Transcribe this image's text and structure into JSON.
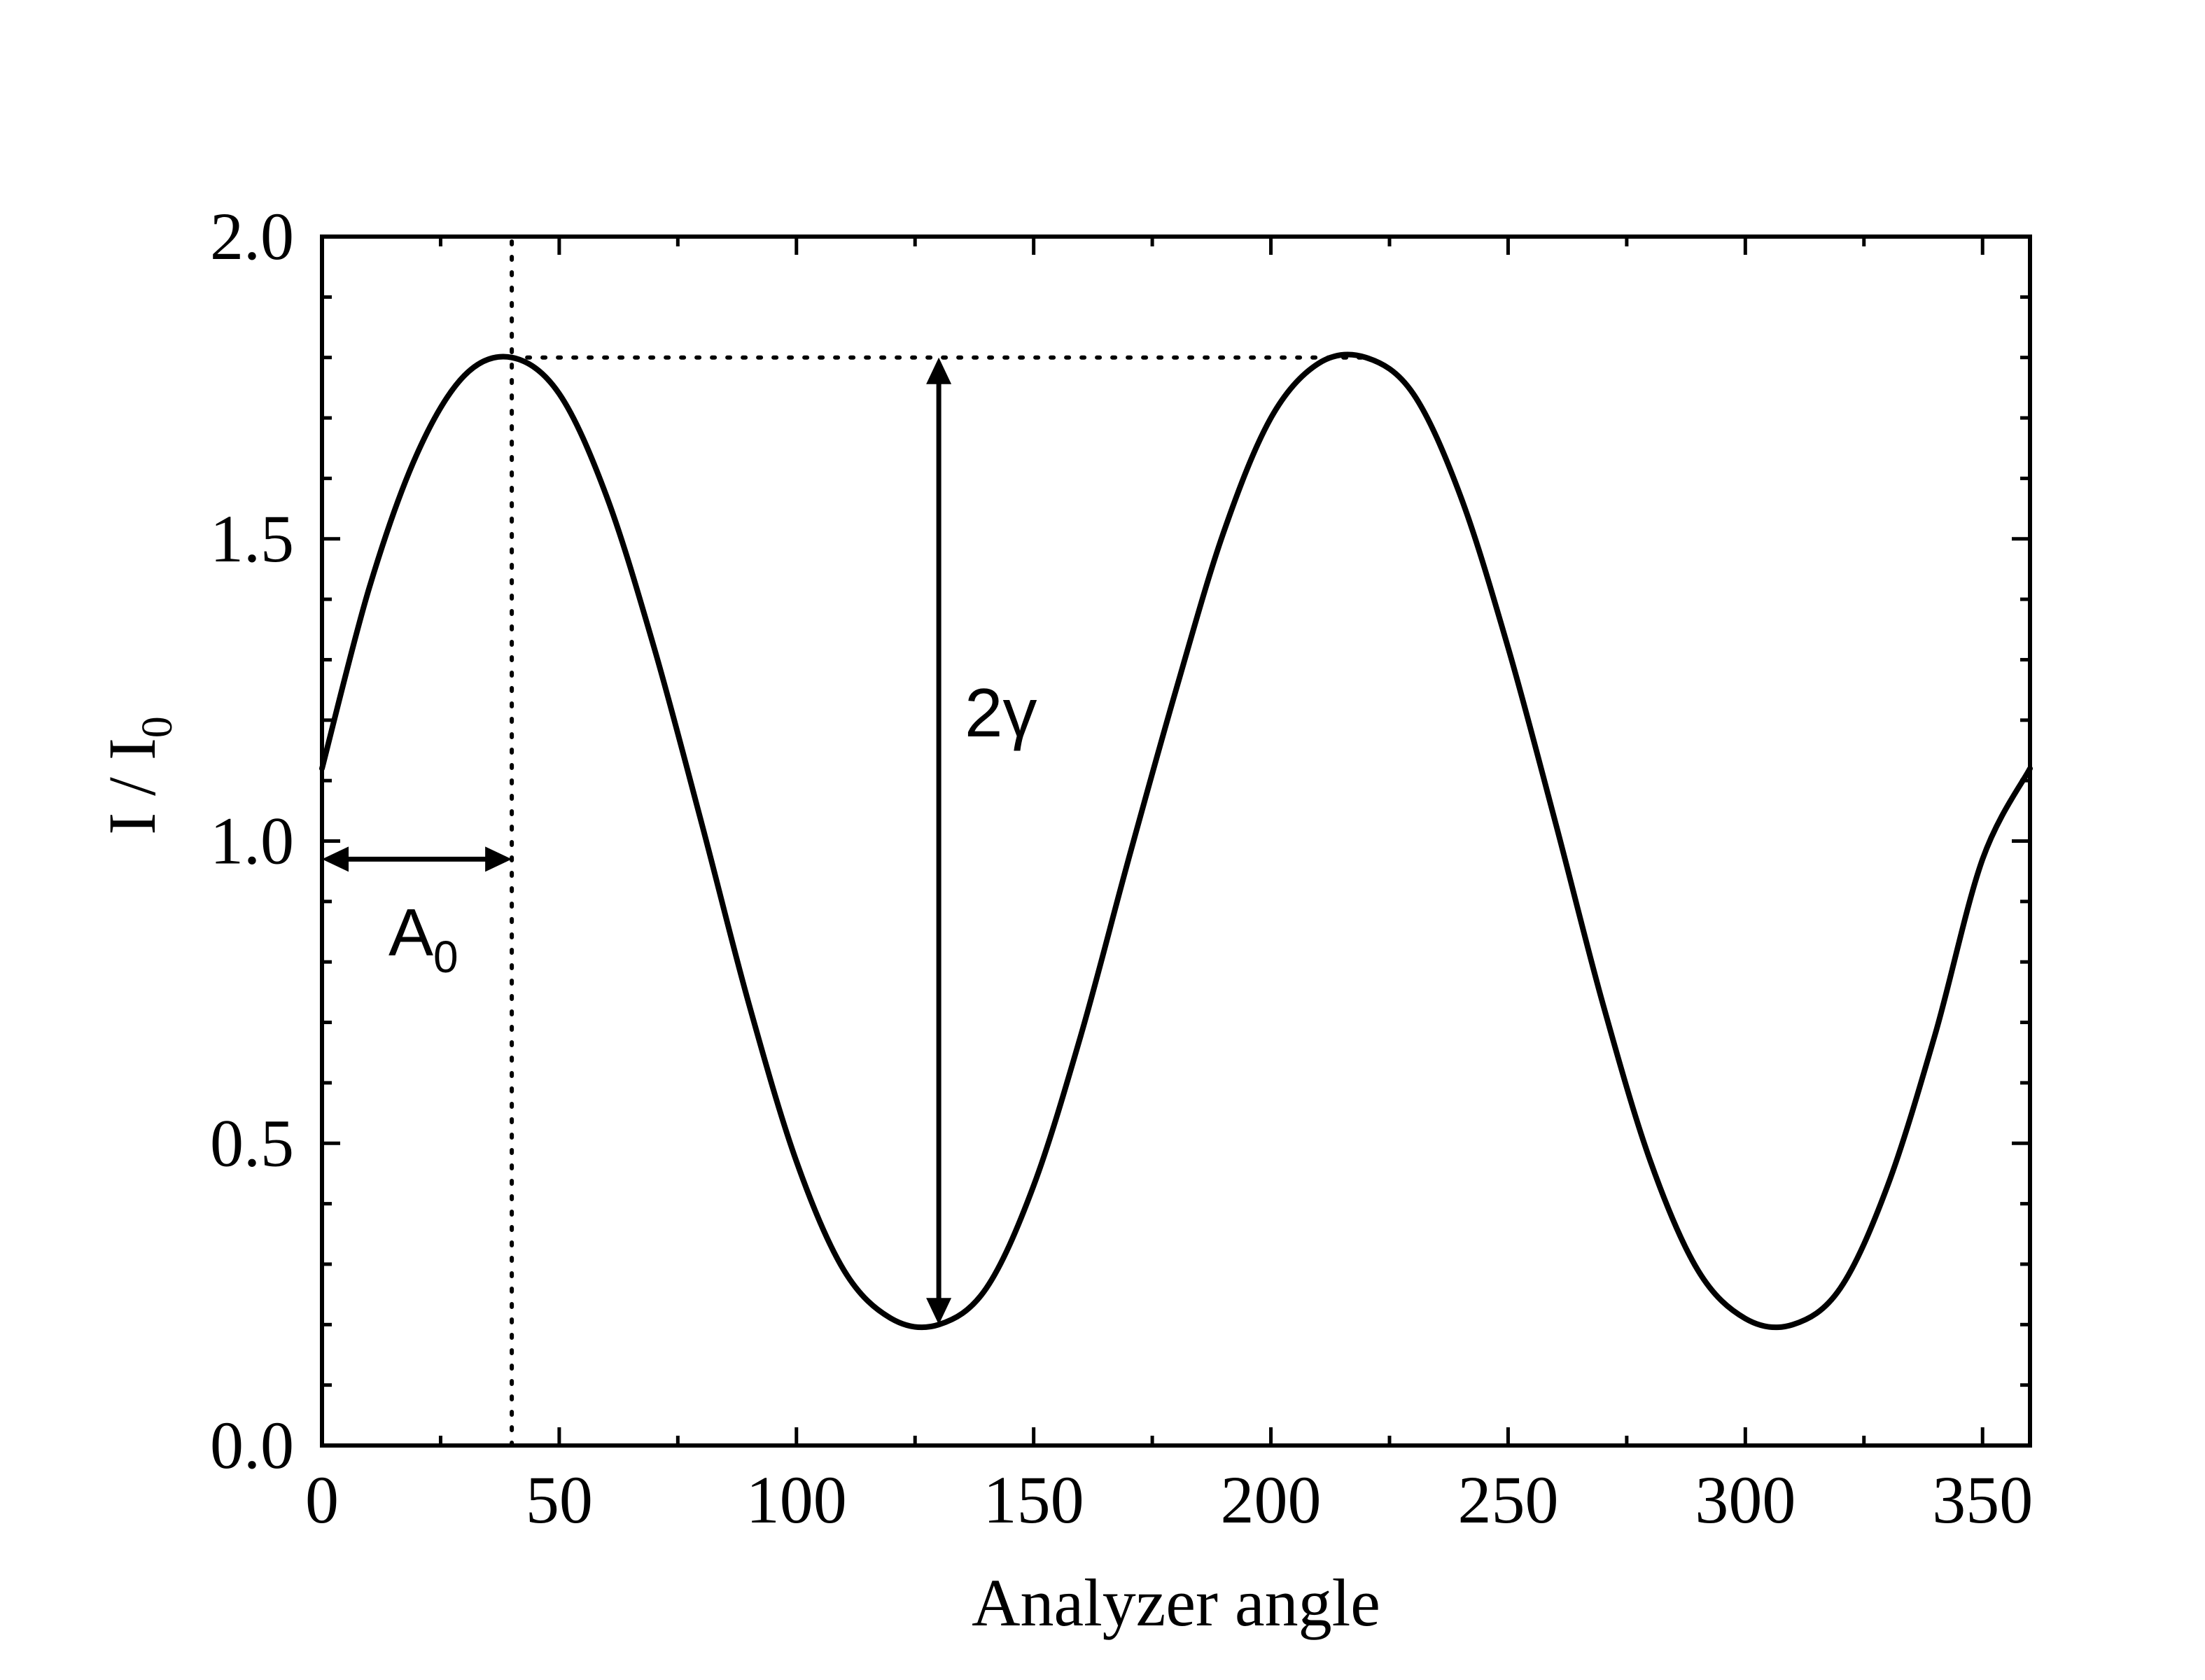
{
  "chart_data": {
    "type": "line",
    "title": "",
    "xlabel": "Analyzer angle",
    "ylabel": {
      "main": "I / I",
      "subscript": "0"
    },
    "xlim": [
      0,
      360
    ],
    "ylim": [
      0.0,
      2.0
    ],
    "x_ticks": [
      0,
      50,
      100,
      150,
      200,
      250,
      300,
      350
    ],
    "x_tick_labels": [
      "0",
      "50",
      "100",
      "150",
      "200",
      "250",
      "300",
      "350"
    ],
    "y_ticks": [
      0.0,
      0.5,
      1.0,
      1.5,
      2.0
    ],
    "y_tick_labels": [
      "0.0",
      "0.5",
      "1.0",
      "1.5",
      "2.0"
    ],
    "x_minor_step": 25,
    "y_minor_step": 0.1,
    "grid": false,
    "legend": "none",
    "series": [
      {
        "name": "",
        "color": "#000000",
        "x": [
          0,
          10,
          20,
          30,
          40,
          50,
          60,
          70,
          80,
          90,
          100,
          110,
          120,
          130,
          140,
          150,
          160,
          170,
          180,
          190,
          200,
          210,
          220,
          230,
          240,
          250,
          260,
          270,
          280,
          290,
          300,
          310,
          320,
          330,
          340,
          350,
          360
        ],
        "y": [
          1.12,
          1.42,
          1.64,
          1.77,
          1.8,
          1.74,
          1.57,
          1.32,
          1.03,
          0.73,
          0.47,
          0.29,
          0.21,
          0.2,
          0.26,
          0.43,
          0.68,
          0.97,
          1.25,
          1.51,
          1.7,
          1.79,
          1.8,
          1.74,
          1.57,
          1.32,
          1.03,
          0.73,
          0.47,
          0.29,
          0.21,
          0.2,
          0.26,
          0.43,
          0.68,
          0.97,
          1.12
        ]
      }
    ],
    "reference_lines": [
      {
        "kind": "vertical_dotted",
        "x": 40,
        "y_from": 0.0,
        "y_to": 2.0
      },
      {
        "kind": "horizontal_dotted",
        "y": 1.8,
        "x_from": 40,
        "x_to": 220
      }
    ],
    "annotations": [
      {
        "kind": "double_arrow_horizontal",
        "y": 0.97,
        "x_from": 0,
        "x_to": 40,
        "label": "A",
        "label_subscript": "0"
      },
      {
        "kind": "double_arrow_vertical",
        "x": 130,
        "y_from": 1.8,
        "y_to": 0.2,
        "label": "2γ"
      }
    ]
  }
}
